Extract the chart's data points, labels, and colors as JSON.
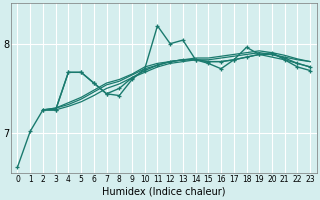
{
  "xlabel": "Humidex (Indice chaleur)",
  "bg_color": "#d5eeee",
  "grid_color": "#ffffff",
  "line_color": "#1a7a6e",
  "xlim": [
    -0.5,
    23.5
  ],
  "ylim": [
    6.55,
    8.45
  ],
  "yticks": [
    7,
    8
  ],
  "xticks": [
    0,
    1,
    2,
    3,
    4,
    5,
    6,
    7,
    8,
    9,
    10,
    11,
    12,
    13,
    14,
    15,
    16,
    17,
    18,
    19,
    20,
    21,
    22,
    23
  ],
  "lines": [
    {
      "x": [
        0,
        1,
        2,
        3,
        4,
        5,
        6,
        7,
        8,
        9,
        10,
        11,
        12,
        13,
        14,
        15,
        16,
        17,
        18,
        19,
        20,
        21,
        22,
        23
      ],
      "y": [
        6.62,
        7.02,
        7.26,
        7.26,
        7.68,
        7.68,
        7.56,
        7.44,
        7.42,
        7.6,
        7.72,
        8.2,
        8.0,
        8.04,
        7.82,
        7.78,
        7.72,
        7.82,
        7.96,
        7.88,
        7.9,
        7.82,
        7.74,
        7.7
      ],
      "marker": true,
      "lw": 1.0
    },
    {
      "x": [
        2,
        3,
        4,
        5,
        6,
        7,
        8,
        9,
        10,
        11,
        12,
        13,
        14,
        15,
        16,
        17,
        18,
        19,
        20,
        21,
        22,
        23
      ],
      "y": [
        7.26,
        7.26,
        7.68,
        7.68,
        7.56,
        7.44,
        7.5,
        7.62,
        7.7,
        7.76,
        7.8,
        7.82,
        7.82,
        7.8,
        7.8,
        7.82,
        7.85,
        7.88,
        7.88,
        7.84,
        7.78,
        7.74
      ],
      "marker": true,
      "lw": 1.0
    },
    {
      "x": [
        2,
        3,
        4,
        5,
        6,
        7,
        8,
        9,
        10,
        11,
        12,
        13,
        14,
        15,
        16,
        17,
        18,
        19,
        20,
        21,
        22,
        23
      ],
      "y": [
        7.26,
        7.26,
        7.3,
        7.35,
        7.42,
        7.5,
        7.55,
        7.62,
        7.68,
        7.74,
        7.78,
        7.8,
        7.82,
        7.8,
        7.8,
        7.82,
        7.85,
        7.88,
        7.85,
        7.82,
        7.78,
        7.74
      ],
      "marker": false,
      "lw": 0.9
    },
    {
      "x": [
        2,
        3,
        4,
        5,
        6,
        7,
        8,
        9,
        10,
        11,
        12,
        13,
        14,
        15,
        16,
        17,
        18,
        19,
        20,
        21,
        22,
        23
      ],
      "y": [
        7.26,
        7.28,
        7.32,
        7.38,
        7.46,
        7.54,
        7.58,
        7.65,
        7.72,
        7.76,
        7.8,
        7.82,
        7.82,
        7.82,
        7.84,
        7.86,
        7.88,
        7.9,
        7.88,
        7.85,
        7.82,
        7.8
      ],
      "marker": false,
      "lw": 0.9
    },
    {
      "x": [
        2,
        3,
        4,
        5,
        6,
        7,
        8,
        9,
        10,
        11,
        12,
        13,
        14,
        15,
        16,
        17,
        18,
        19,
        20,
        21,
        22,
        23
      ],
      "y": [
        7.26,
        7.28,
        7.34,
        7.4,
        7.48,
        7.56,
        7.6,
        7.66,
        7.74,
        7.78,
        7.8,
        7.82,
        7.84,
        7.84,
        7.86,
        7.88,
        7.9,
        7.92,
        7.9,
        7.87,
        7.83,
        7.8
      ],
      "marker": false,
      "lw": 0.9
    }
  ]
}
